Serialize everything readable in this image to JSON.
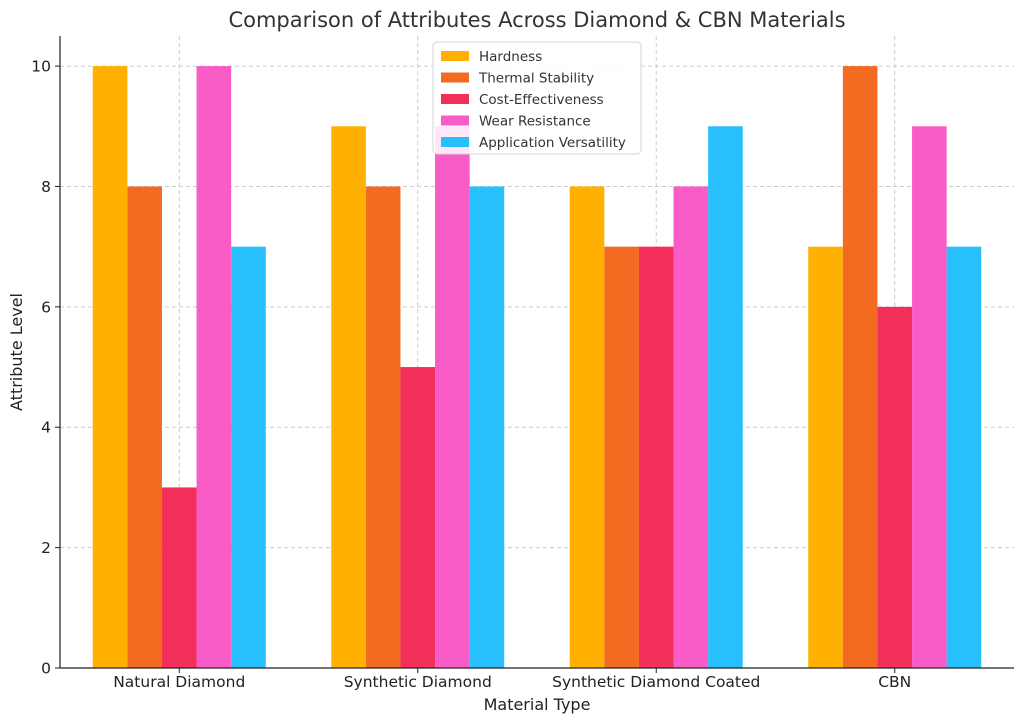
{
  "chart_data": {
    "type": "bar",
    "title": "Comparison of Attributes Across Diamond & CBN Materials",
    "xlabel": "Material Type",
    "ylabel": "Attribute Level",
    "categories": [
      "Natural Diamond",
      "Synthetic Diamond",
      "Synthetic Diamond Coated",
      "CBN"
    ],
    "ylim": [
      0,
      10.5
    ],
    "yticks": [
      0,
      2,
      4,
      6,
      8,
      10
    ],
    "grid": true,
    "legend_position": "top-center",
    "series": [
      {
        "name": "Hardness",
        "color": "#FFB000",
        "values": [
          10,
          9,
          8,
          7
        ]
      },
      {
        "name": "Thermal Stability",
        "color": "#F26B21",
        "values": [
          8,
          8,
          7,
          10
        ]
      },
      {
        "name": "Cost-Effectiveness",
        "color": "#F2305A",
        "values": [
          3,
          5,
          7,
          6
        ]
      },
      {
        "name": "Wear Resistance",
        "color": "#F95CC6",
        "values": [
          10,
          9,
          8,
          9
        ]
      },
      {
        "name": "Application Versatility",
        "color": "#27BFFC",
        "values": [
          7,
          8,
          9,
          7
        ]
      }
    ]
  }
}
